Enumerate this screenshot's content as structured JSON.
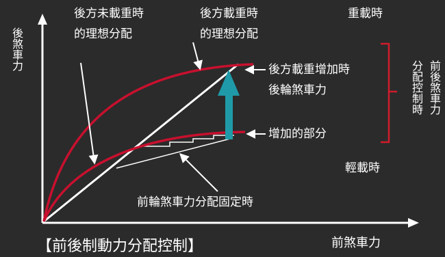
{
  "axes": {
    "y_label": "後煞車力",
    "x_label": "前煞車力"
  },
  "labels": {
    "unloaded_ideal": [
      "後方未載重時",
      "的理想分配"
    ],
    "loaded_ideal": [
      "後方載重時",
      "的理想分配"
    ],
    "heavy_load": "重載時",
    "light_load": "輕載時",
    "loaded_increase": [
      "後方載重增加時",
      "後輪煞車力"
    ],
    "increased_part": "增加的部分",
    "fixed_distribution": "前輪煞車力分配固定時"
  },
  "bracket": {
    "col1": "分配控制時",
    "col2": "前後煞車力"
  },
  "title": "【前後制動力分配控制】",
  "colors": {
    "background": "#2b2b2b",
    "ideal_curve": "#c8102e",
    "bracket": "#d01c2c",
    "arrow": "#1f9aa8",
    "axis": "#ffffff"
  }
}
